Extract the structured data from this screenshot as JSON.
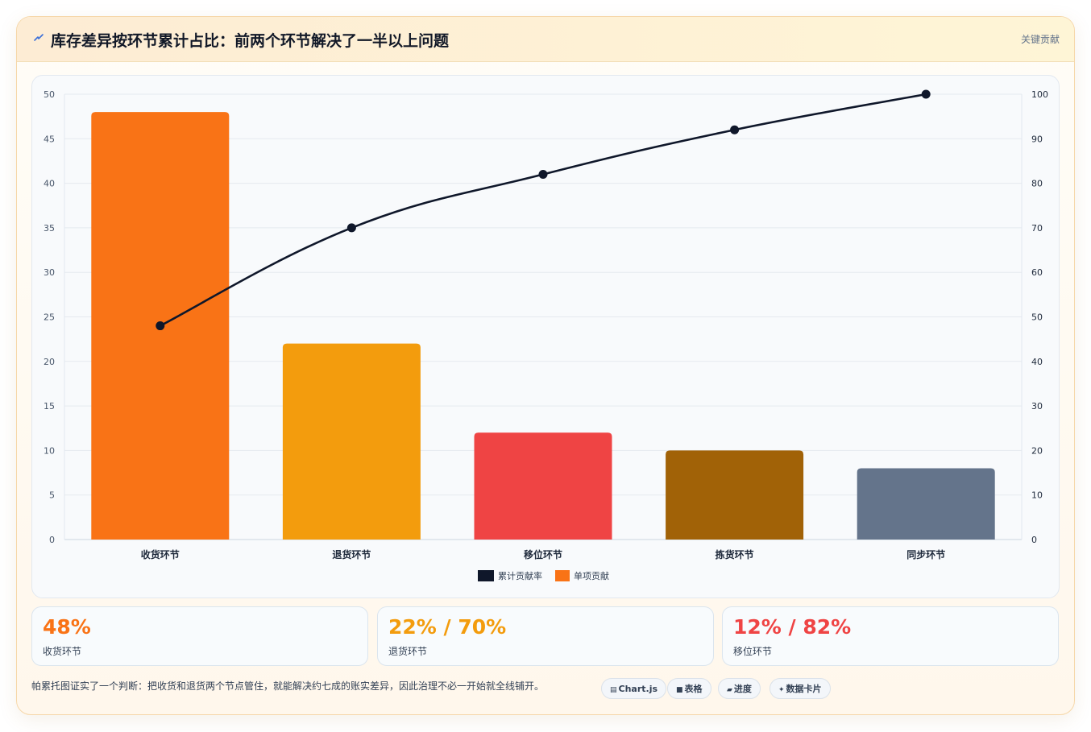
{
  "header": {
    "icon": "lightning-icon",
    "title": "库存差异按环节累计占比：前两个环节解决了一半以上问题",
    "tag": "关键贡献"
  },
  "chart_data": {
    "type": "bar",
    "categories": [
      "收货环节",
      "退货环节",
      "移位环节",
      "拣货环节",
      "同步环节"
    ],
    "series": [
      {
        "name": "单项贡献",
        "type": "bar",
        "axis": "left",
        "values": [
          48,
          22,
          12,
          10,
          8
        ],
        "colors": [
          "#f97316",
          "#f39c0d",
          "#ef4444",
          "#a16207",
          "#64748b"
        ]
      },
      {
        "name": "累计贡献率",
        "type": "line",
        "axis": "right",
        "values": [
          48,
          70,
          82,
          92,
          100
        ],
        "color": "#0f172a"
      }
    ],
    "ylim_left": [
      0,
      50
    ],
    "yticks_left": [
      0,
      5,
      10,
      15,
      20,
      25,
      30,
      35,
      40,
      45,
      50
    ],
    "ylim_right": [
      0,
      100
    ],
    "yticks_right": [
      0,
      10,
      20,
      30,
      40,
      50,
      60,
      70,
      80,
      90,
      100
    ],
    "legend": [
      {
        "label": "累计贡献率",
        "color": "#0f172a"
      },
      {
        "label": "单项贡献",
        "color": "#f97316"
      }
    ],
    "legend_position": "bottom",
    "grid": true
  },
  "kpis": [
    {
      "value": "48%",
      "label": "收货环节",
      "color": "#f97316"
    },
    {
      "value": "22% / 70%",
      "label": "退货环节",
      "color": "#f39c0d"
    },
    {
      "value": "12% / 82%",
      "label": "移位环节",
      "color": "#ef4444"
    }
  ],
  "footer": {
    "note": "帕累托图证实了一个判断：把收货和退货两个节点管住，就能解决约七成的账实差异，因此治理不必一开始就全线铺开。",
    "chips": [
      {
        "icon": "▤",
        "label": "Chart.js"
      },
      {
        "icon": "■",
        "label": "表格"
      },
      {
        "icon": "▰",
        "label": "进度"
      },
      {
        "icon": "✦",
        "label": "数据卡片"
      }
    ]
  }
}
